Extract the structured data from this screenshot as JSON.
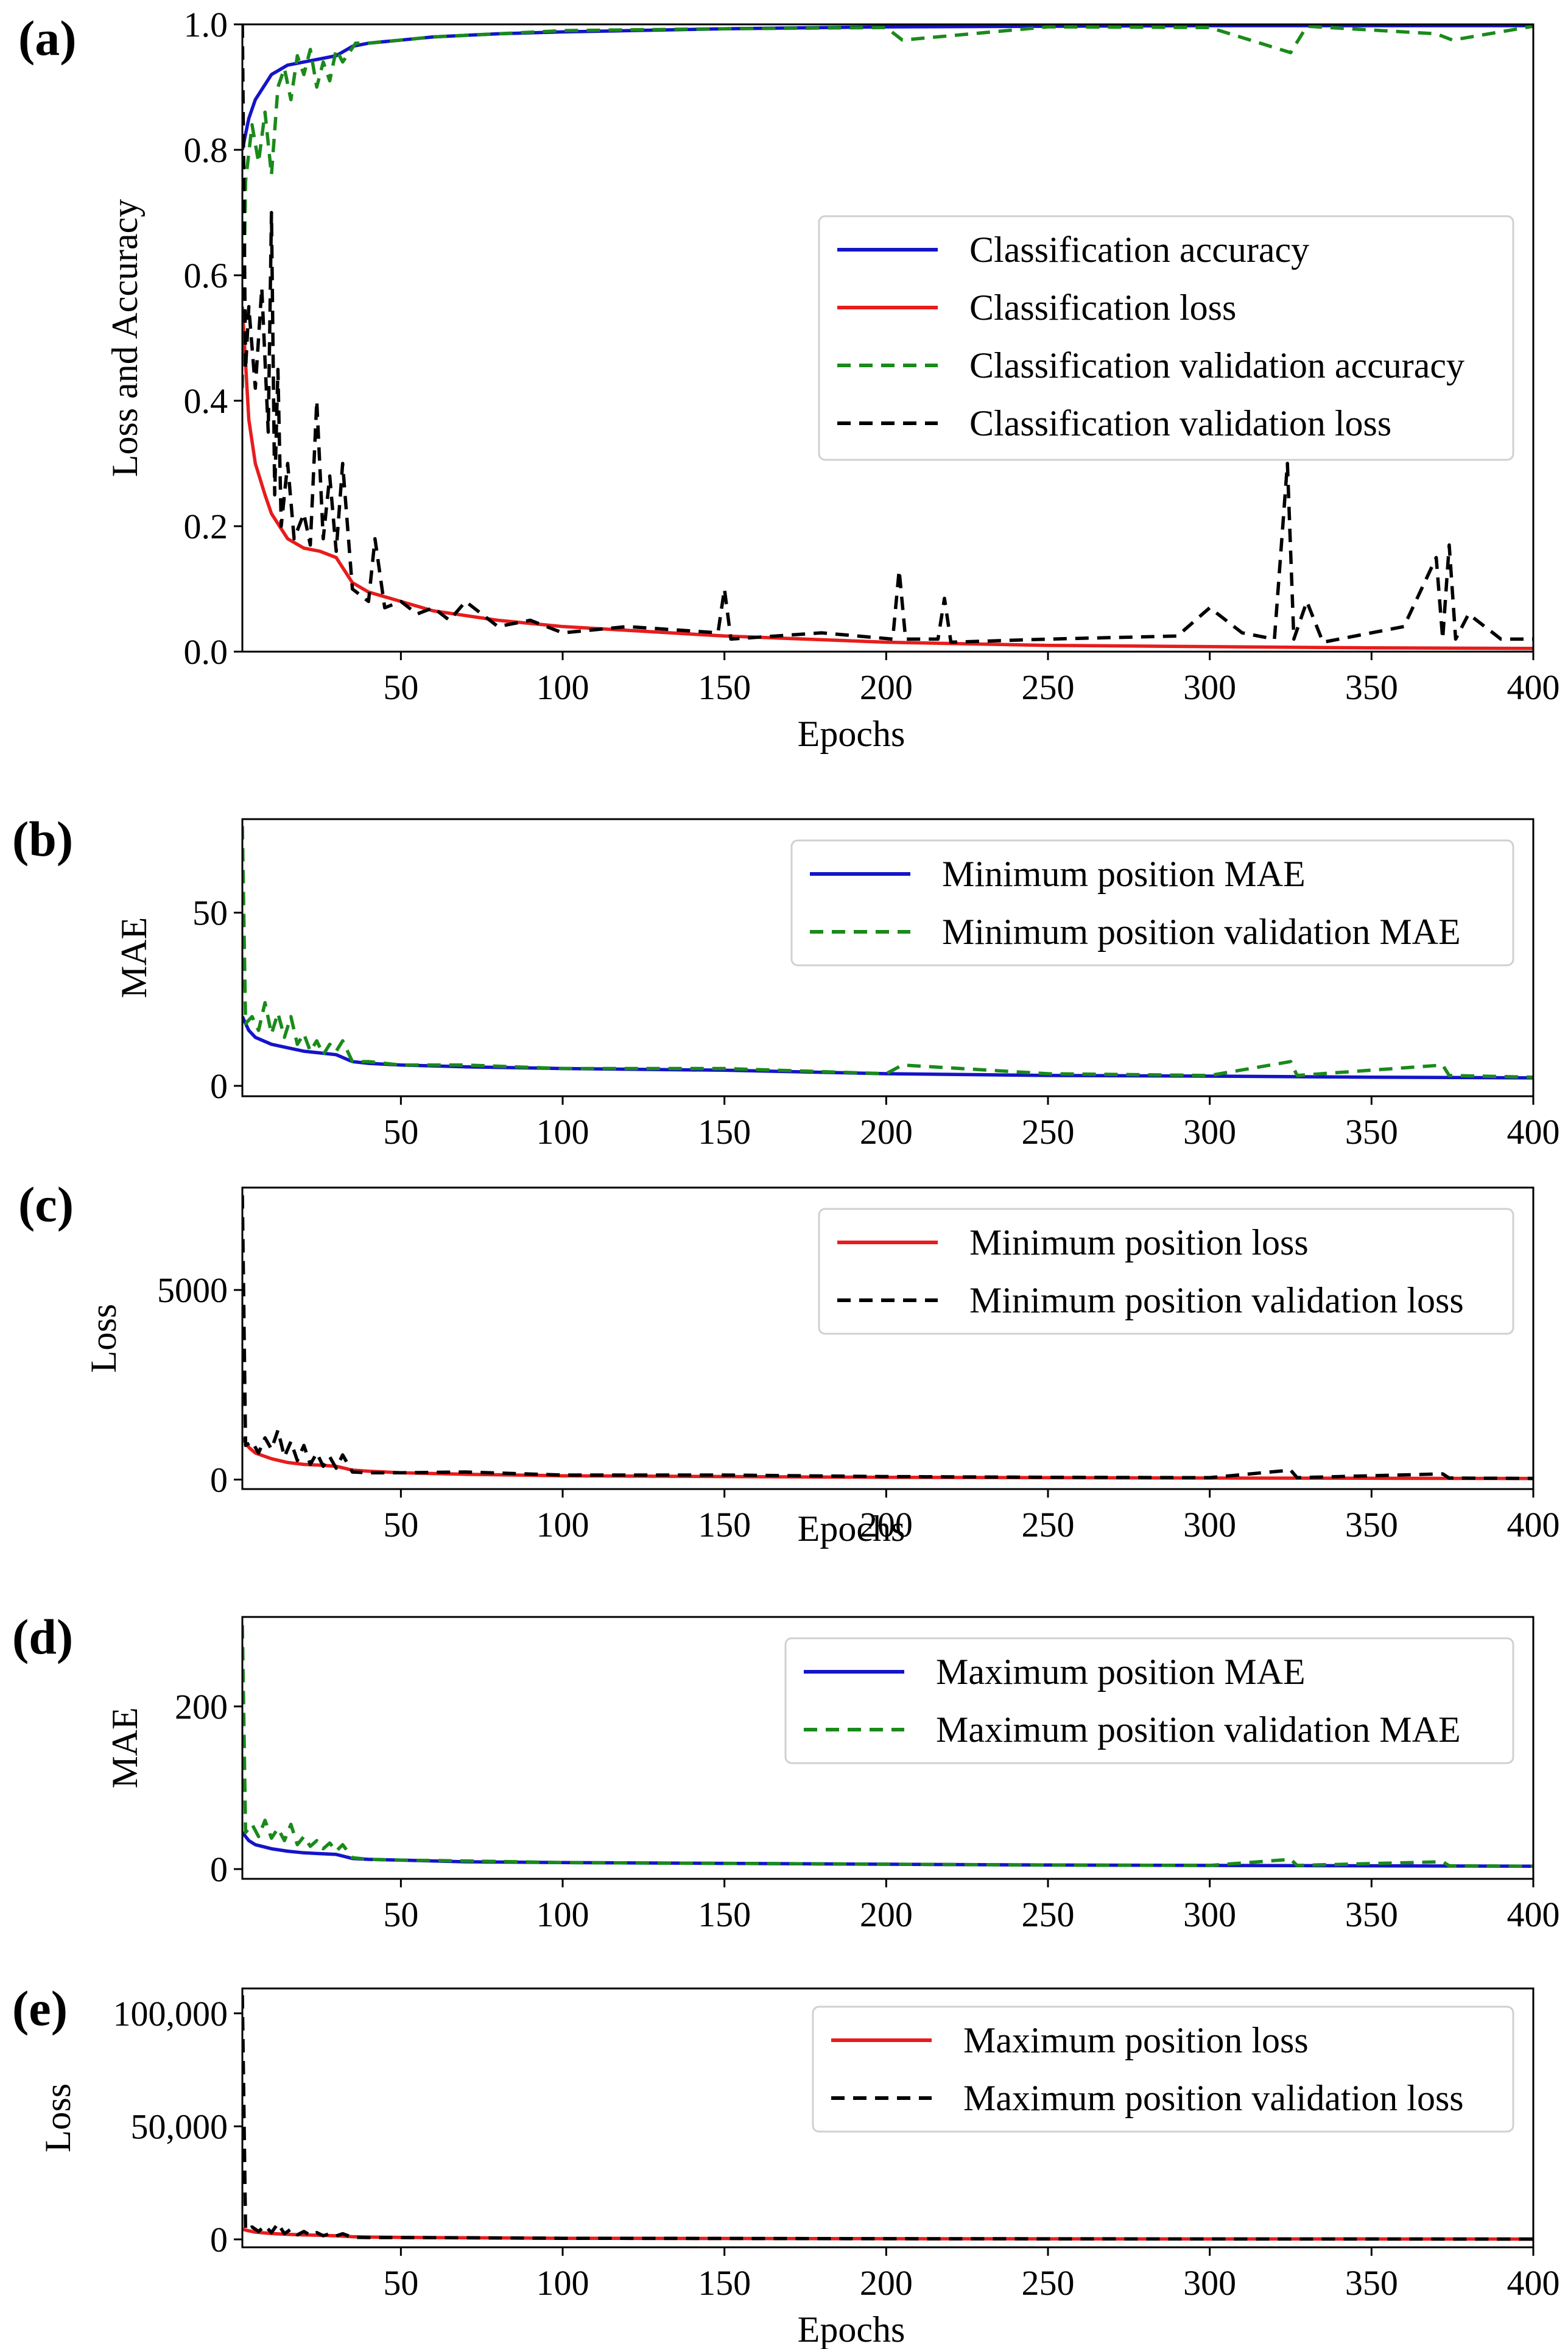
{
  "chart_data": [
    {
      "id": "a",
      "panel_label": "(a)",
      "type": "line",
      "xlabel": "Epochs",
      "ylabel": "Loss and Accuracy",
      "xlim": [
        1,
        400
      ],
      "ylim": [
        0,
        1.0
      ],
      "xticks": [
        50,
        100,
        150,
        200,
        250,
        300,
        350,
        400
      ],
      "xtick_labels": [
        "50",
        "100",
        "150",
        "200",
        "250",
        "300",
        "350",
        "400"
      ],
      "yticks": [
        0,
        0.2,
        0.4,
        0.6,
        0.8,
        1.0
      ],
      "ytick_labels": [
        "0.0",
        "0.2",
        "0.4",
        "0.6",
        "0.8",
        "1.0"
      ],
      "legend_position": "center-right",
      "series": [
        {
          "name": "Classification accuracy",
          "color": "#1414c8",
          "dash": "solid",
          "x": [
            1,
            3,
            5,
            10,
            15,
            20,
            25,
            30,
            35,
            40,
            50,
            60,
            80,
            100,
            150,
            200,
            250,
            300,
            350,
            400
          ],
          "y": [
            0.8,
            0.85,
            0.88,
            0.92,
            0.935,
            0.94,
            0.945,
            0.95,
            0.965,
            0.97,
            0.975,
            0.98,
            0.985,
            0.988,
            0.993,
            0.996,
            0.997,
            0.998,
            0.998,
            0.998
          ]
        },
        {
          "name": "Classification loss",
          "color": "#e81c1c",
          "dash": "solid",
          "x": [
            1,
            3,
            5,
            8,
            10,
            15,
            20,
            25,
            30,
            35,
            40,
            50,
            60,
            80,
            100,
            150,
            200,
            250,
            300,
            350,
            400
          ],
          "y": [
            0.55,
            0.37,
            0.3,
            0.25,
            0.22,
            0.18,
            0.165,
            0.16,
            0.15,
            0.11,
            0.095,
            0.08,
            0.065,
            0.05,
            0.04,
            0.025,
            0.015,
            0.01,
            0.008,
            0.006,
            0.005
          ]
        },
        {
          "name": "Classification validation accuracy",
          "color": "#1a8a1a",
          "dash": "dashed",
          "x": [
            1,
            2,
            4,
            6,
            8,
            10,
            12,
            14,
            16,
            18,
            20,
            22,
            24,
            26,
            28,
            30,
            32,
            36,
            40,
            50,
            60,
            80,
            100,
            150,
            200,
            205,
            250,
            300,
            325,
            330,
            370,
            375,
            400
          ],
          "y": [
            0.42,
            0.75,
            0.84,
            0.78,
            0.86,
            0.76,
            0.9,
            0.93,
            0.88,
            0.95,
            0.92,
            0.96,
            0.9,
            0.94,
            0.91,
            0.96,
            0.94,
            0.97,
            0.97,
            0.975,
            0.98,
            0.985,
            0.99,
            0.993,
            0.995,
            0.975,
            0.996,
            0.995,
            0.955,
            0.997,
            0.985,
            0.975,
            0.997
          ]
        },
        {
          "name": "Classification validation loss",
          "color": "#000000",
          "dash": "dashed",
          "x": [
            1,
            2,
            3,
            5,
            7,
            9,
            10,
            11,
            12,
            13,
            15,
            17,
            20,
            22,
            24,
            26,
            28,
            30,
            32,
            35,
            40,
            42,
            45,
            50,
            55,
            60,
            65,
            70,
            80,
            90,
            100,
            120,
            148,
            150,
            152,
            180,
            202,
            204,
            206,
            216,
            218,
            220,
            250,
            290,
            300,
            310,
            320,
            324,
            326,
            330,
            335,
            360,
            370,
            372,
            374,
            376,
            380,
            390,
            400
          ],
          "y": [
            1.0,
            0.45,
            0.55,
            0.42,
            0.58,
            0.35,
            0.7,
            0.25,
            0.45,
            0.2,
            0.3,
            0.18,
            0.22,
            0.17,
            0.4,
            0.18,
            0.28,
            0.16,
            0.3,
            0.1,
            0.08,
            0.18,
            0.07,
            0.08,
            0.06,
            0.07,
            0.05,
            0.08,
            0.04,
            0.05,
            0.03,
            0.04,
            0.03,
            0.1,
            0.02,
            0.03,
            0.02,
            0.13,
            0.02,
            0.02,
            0.085,
            0.015,
            0.02,
            0.025,
            0.07,
            0.03,
            0.02,
            0.3,
            0.02,
            0.08,
            0.015,
            0.04,
            0.15,
            0.02,
            0.17,
            0.02,
            0.06,
            0.02,
            0.02
          ]
        }
      ]
    },
    {
      "id": "b",
      "panel_label": "(b)",
      "type": "line",
      "xlabel": "",
      "ylabel": "MAE",
      "xlim": [
        1,
        400
      ],
      "ylim": [
        -3,
        77
      ],
      "xticks": [
        50,
        100,
        150,
        200,
        250,
        300,
        350,
        400
      ],
      "xtick_labels": [
        "50",
        "100",
        "150",
        "200",
        "250",
        "300",
        "350",
        "400"
      ],
      "yticks": [
        0,
        50
      ],
      "ytick_labels": [
        "0",
        "50"
      ],
      "legend_position": "top-right",
      "series": [
        {
          "name": "Minimum position MAE",
          "color": "#1414c8",
          "dash": "solid",
          "x": [
            1,
            3,
            5,
            10,
            15,
            20,
            25,
            30,
            35,
            40,
            50,
            70,
            100,
            150,
            200,
            250,
            300,
            350,
            400
          ],
          "y": [
            20,
            16,
            14,
            12,
            11,
            10,
            9.5,
            9,
            7,
            6.5,
            6,
            5.5,
            5,
            4.5,
            3.5,
            3,
            2.8,
            2.5,
            2.3
          ]
        },
        {
          "name": "Minimum position validation MAE",
          "color": "#1a8a1a",
          "dash": "dashed",
          "x": [
            1,
            2,
            4,
            6,
            8,
            10,
            12,
            14,
            16,
            18,
            20,
            22,
            24,
            26,
            28,
            30,
            32,
            35,
            40,
            50,
            70,
            100,
            150,
            200,
            205,
            250,
            300,
            325,
            327,
            372,
            374,
            400
          ],
          "y": [
            75,
            18,
            20,
            16,
            24,
            15,
            21,
            14,
            20,
            12,
            15,
            10,
            13,
            9,
            12,
            10,
            13,
            7,
            7,
            6,
            6,
            5,
            5,
            3.5,
            6,
            3.5,
            3,
            7,
            3,
            6,
            3,
            2.5
          ]
        }
      ]
    },
    {
      "id": "c",
      "panel_label": "(c)",
      "type": "line",
      "xlabel": "Epochs",
      "ylabel": "Loss",
      "xlim": [
        1,
        400
      ],
      "ylim": [
        -250,
        7700
      ],
      "xticks": [
        50,
        100,
        150,
        200,
        250,
        300,
        350,
        400
      ],
      "xtick_labels": [
        "50",
        "100",
        "150",
        "200",
        "250",
        "300",
        "350",
        "400"
      ],
      "yticks": [
        0,
        5000
      ],
      "ytick_labels": [
        "0",
        "5000"
      ],
      "legend_position": "top-right",
      "series": [
        {
          "name": "Minimum position loss",
          "color": "#e81c1c",
          "dash": "solid",
          "x": [
            1,
            3,
            5,
            10,
            15,
            20,
            25,
            30,
            35,
            40,
            50,
            70,
            100,
            150,
            200,
            250,
            300,
            350,
            400
          ],
          "y": [
            1100,
            850,
            700,
            550,
            450,
            400,
            380,
            350,
            250,
            220,
            180,
            140,
            100,
            80,
            60,
            50,
            40,
            35,
            30
          ]
        },
        {
          "name": "Minimum position validation loss",
          "color": "#000000",
          "dash": "dashed",
          "x": [
            1,
            2,
            4,
            6,
            8,
            10,
            12,
            14,
            16,
            18,
            20,
            22,
            24,
            26,
            28,
            30,
            32,
            35,
            40,
            50,
            70,
            100,
            150,
            200,
            250,
            300,
            325,
            327,
            372,
            374,
            400
          ],
          "y": [
            7500,
            900,
            1000,
            700,
            1100,
            800,
            1300,
            600,
            1000,
            500,
            900,
            400,
            700,
            350,
            600,
            300,
            650,
            200,
            180,
            180,
            200,
            120,
            120,
            80,
            60,
            50,
            250,
            50,
            150,
            40,
            30
          ]
        }
      ]
    },
    {
      "id": "d",
      "panel_label": "(d)",
      "type": "line",
      "xlabel": "",
      "ylabel": "MAE",
      "xlim": [
        1,
        400
      ],
      "ylim": [
        -12,
        310
      ],
      "xticks": [
        50,
        100,
        150,
        200,
        250,
        300,
        350,
        400
      ],
      "xtick_labels": [
        "50",
        "100",
        "150",
        "200",
        "250",
        "300",
        "350",
        "400"
      ],
      "yticks": [
        0,
        200
      ],
      "ytick_labels": [
        "0",
        "200"
      ],
      "legend_position": "top-right",
      "series": [
        {
          "name": "Maximum position MAE",
          "color": "#1414c8",
          "dash": "solid",
          "x": [
            1,
            3,
            5,
            10,
            15,
            20,
            25,
            30,
            35,
            40,
            50,
            70,
            100,
            150,
            200,
            250,
            300,
            350,
            400
          ],
          "y": [
            45,
            35,
            30,
            25,
            22,
            20,
            19,
            18,
            13,
            12,
            11,
            9,
            8,
            7,
            6,
            5,
            4.5,
            4,
            3.5
          ]
        },
        {
          "name": "Maximum position validation MAE",
          "color": "#1a8a1a",
          "dash": "dashed",
          "x": [
            1,
            2,
            4,
            6,
            8,
            10,
            12,
            14,
            16,
            18,
            20,
            22,
            24,
            26,
            28,
            30,
            32,
            35,
            40,
            50,
            70,
            100,
            150,
            200,
            250,
            300,
            325,
            327,
            372,
            374,
            400
          ],
          "y": [
            300,
            45,
            55,
            40,
            60,
            38,
            50,
            35,
            55,
            30,
            40,
            28,
            35,
            25,
            32,
            22,
            30,
            14,
            12,
            11,
            10,
            8,
            7,
            6,
            5,
            4.5,
            12,
            4.5,
            9,
            4,
            3.5
          ]
        }
      ]
    },
    {
      "id": "e",
      "panel_label": "(e)",
      "type": "line",
      "xlabel": "Epochs",
      "ylabel": "Loss",
      "xlim": [
        1,
        400
      ],
      "ylim": [
        -3500,
        111000
      ],
      "xticks": [
        50,
        100,
        150,
        200,
        250,
        300,
        350,
        400
      ],
      "xtick_labels": [
        "50",
        "100",
        "150",
        "200",
        "250",
        "300",
        "350",
        "400"
      ],
      "yticks": [
        0,
        50000,
        100000
      ],
      "ytick_labels": [
        "0",
        "50,000",
        "100,000"
      ],
      "legend_position": "top-right",
      "series": [
        {
          "name": "Maximum position loss",
          "color": "#e81c1c",
          "dash": "solid",
          "x": [
            1,
            3,
            5,
            10,
            15,
            20,
            25,
            30,
            35,
            40,
            50,
            70,
            100,
            150,
            200,
            250,
            300,
            350,
            400
          ],
          "y": [
            4500,
            3800,
            3200,
            2600,
            2200,
            2000,
            1800,
            1600,
            1200,
            1000,
            900,
            700,
            500,
            400,
            300,
            250,
            200,
            180,
            150
          ]
        },
        {
          "name": "Maximum position validation loss",
          "color": "#000000",
          "dash": "dashed",
          "x": [
            1,
            2,
            4,
            6,
            8,
            10,
            12,
            14,
            16,
            18,
            20,
            22,
            24,
            26,
            28,
            30,
            32,
            35,
            40,
            50,
            70,
            100,
            150,
            200,
            250,
            300,
            400
          ],
          "y": [
            108000,
            4000,
            5500,
            3500,
            6000,
            3000,
            7000,
            2500,
            4500,
            2000,
            3500,
            1800,
            3000,
            1600,
            2500,
            1500,
            2500,
            900,
            800,
            800,
            700,
            500,
            400,
            300,
            250,
            200,
            150
          ]
        }
      ]
    }
  ]
}
